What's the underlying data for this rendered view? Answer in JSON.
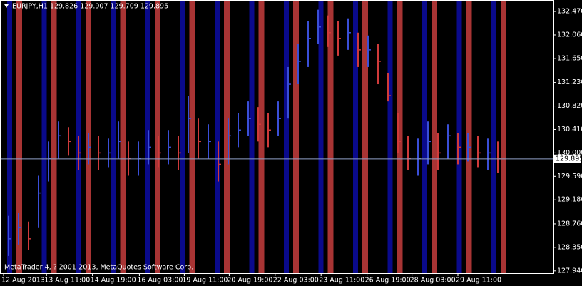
{
  "chart_data": {
    "type": "ohlc",
    "title": "EURJPY,H1  129.826 129.907 129.709 129.895",
    "footer": "MetaTrader 4, ? 2001-2013, MetaQuotes Software Corp.",
    "color_up": "#3a4fd8",
    "color_down": "#d03a3a",
    "last_color": "#8fa0c8",
    "last": 129.895,
    "xlim": [
      0,
      50
    ],
    "xticks": [
      {
        "value": 0,
        "label": "12 Aug 2013"
      },
      {
        "value": 4.3,
        "label": "13 Aug 11:00"
      },
      {
        "value": 8.9,
        "label": "14 Aug 19:00"
      },
      {
        "value": 13.6,
        "label": "16 Aug 03:00"
      },
      {
        "value": 18.1,
        "label": "19 Aug 11:00"
      },
      {
        "value": 22.6,
        "label": "20 Aug 19:00"
      },
      {
        "value": 27.2,
        "label": "22 Aug 03:00"
      },
      {
        "value": 31.8,
        "label": "23 Aug 11:00"
      },
      {
        "value": 36.4,
        "label": "26 Aug 19:00"
      },
      {
        "value": 40.9,
        "label": "28 Aug 03:00"
      },
      {
        "value": 45.5,
        "label": "29 Aug 11:00"
      }
    ],
    "ylim": [
      127.9,
      132.67
    ],
    "yticks": [
      {
        "value": 132.47,
        "label": "132.470"
      },
      {
        "value": 132.06,
        "label": "132.060"
      },
      {
        "value": 131.65,
        "label": "131.650"
      },
      {
        "value": 131.23,
        "label": "131.230"
      },
      {
        "value": 130.82,
        "label": "130.820"
      },
      {
        "value": 130.41,
        "label": "130.410"
      },
      {
        "value": 130.0,
        "label": "130.000"
      },
      {
        "value": 129.59,
        "label": "129.590"
      },
      {
        "value": 129.18,
        "label": "129.180"
      },
      {
        "value": 128.76,
        "label": "128.760"
      },
      {
        "value": 128.35,
        "label": "128.350"
      },
      {
        "value": 127.94,
        "label": "127.940"
      }
    ],
    "high": [
      128.9,
      128.95,
      128.8,
      129.6,
      130.2,
      130.55,
      130.45,
      130.3,
      130.35,
      130.3,
      130.25,
      130.55,
      130.2,
      130.2,
      130.4,
      130.3,
      130.4,
      130.3,
      131.0,
      130.6,
      130.5,
      130.2,
      130.6,
      130.7,
      130.9,
      130.8,
      130.7,
      130.9,
      131.5,
      131.9,
      132.3,
      132.5,
      132.4,
      132.3,
      132.35,
      132.1,
      132.05,
      131.9,
      131.4,
      130.7,
      130.3,
      130.25,
      130.55,
      130.35,
      130.5,
      130.35,
      130.35,
      130.3,
      130.25,
      130.2
    ],
    "low": [
      128.2,
      128.4,
      128.3,
      128.7,
      129.5,
      129.9,
      129.95,
      129.7,
      129.8,
      129.7,
      129.75,
      129.9,
      129.6,
      129.6,
      129.8,
      129.75,
      129.8,
      129.7,
      130.0,
      129.9,
      129.9,
      129.5,
      129.8,
      130.1,
      130.3,
      130.2,
      130.1,
      130.3,
      130.6,
      131.2,
      131.5,
      131.9,
      131.85,
      131.7,
      131.8,
      131.5,
      131.5,
      131.2,
      130.9,
      130.0,
      129.7,
      129.6,
      129.8,
      129.7,
      129.9,
      129.8,
      129.85,
      129.75,
      129.7,
      129.65
    ],
    "close": [
      128.5,
      128.7,
      128.5,
      129.3,
      129.9,
      130.3,
      130.2,
      130.0,
      130.1,
      130.0,
      130.0,
      130.2,
      129.9,
      129.9,
      130.1,
      130.0,
      130.1,
      130.0,
      130.6,
      130.2,
      130.2,
      129.8,
      130.3,
      130.4,
      130.6,
      130.5,
      130.4,
      130.6,
      131.2,
      131.6,
      132.0,
      132.2,
      132.1,
      132.0,
      132.1,
      131.8,
      131.8,
      131.6,
      131.0,
      130.2,
      129.9,
      129.9,
      130.2,
      130.0,
      130.3,
      130.1,
      130.1,
      130.0,
      130.0,
      129.895
    ]
  }
}
